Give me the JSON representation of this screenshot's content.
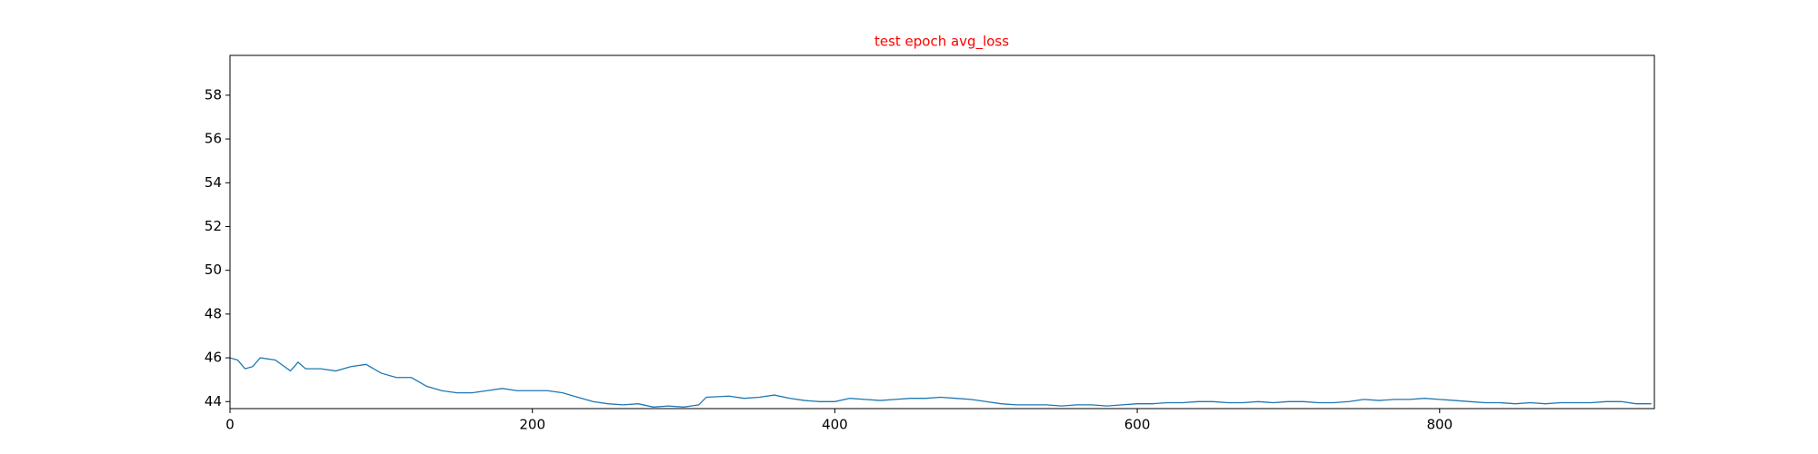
{
  "chart_data": {
    "type": "line",
    "title": "test epoch avg_loss",
    "title_color": "#ff0000",
    "x": [
      0,
      5,
      10,
      15,
      20,
      30,
      40,
      45,
      50,
      60,
      70,
      80,
      90,
      100,
      110,
      120,
      130,
      140,
      150,
      160,
      170,
      180,
      190,
      200,
      210,
      220,
      230,
      240,
      250,
      260,
      270,
      280,
      290,
      300,
      310,
      315,
      330,
      340,
      350,
      360,
      370,
      380,
      390,
      400,
      410,
      420,
      430,
      440,
      450,
      460,
      470,
      480,
      490,
      500,
      510,
      520,
      530,
      540,
      550,
      560,
      570,
      580,
      590,
      600,
      610,
      620,
      630,
      640,
      650,
      660,
      670,
      680,
      690,
      700,
      710,
      720,
      730,
      740,
      750,
      760,
      770,
      780,
      790,
      800,
      810,
      820,
      830,
      840,
      850,
      860,
      870,
      880,
      890,
      900,
      910,
      920,
      930,
      940
    ],
    "series": [
      {
        "color": "#1f77b4",
        "values": [
          46.0,
          45.9,
          45.5,
          45.6,
          46.0,
          45.9,
          45.4,
          45.8,
          45.5,
          45.5,
          45.4,
          45.6,
          45.7,
          45.3,
          45.1,
          45.1,
          44.7,
          44.5,
          44.4,
          44.4,
          44.5,
          44.6,
          44.5,
          44.5,
          44.5,
          44.4,
          44.2,
          44.0,
          43.9,
          43.85,
          43.9,
          43.75,
          43.8,
          43.75,
          43.85,
          44.2,
          44.25,
          44.15,
          44.2,
          44.3,
          44.15,
          44.05,
          44.0,
          44.0,
          44.15,
          44.1,
          44.05,
          44.1,
          44.15,
          44.15,
          44.2,
          44.15,
          44.1,
          44.0,
          43.9,
          43.85,
          43.85,
          43.85,
          43.8,
          43.85,
          43.85,
          43.8,
          43.85,
          43.9,
          43.9,
          43.95,
          43.95,
          44.0,
          44.0,
          43.95,
          43.95,
          44.0,
          43.95,
          44.0,
          44.0,
          43.95,
          43.95,
          44.0,
          44.1,
          44.05,
          44.1,
          44.1,
          44.15,
          44.1,
          44.05,
          44.0,
          43.95,
          43.95,
          43.9,
          43.95,
          43.9,
          43.95,
          43.95,
          43.95,
          44.0,
          44.0,
          43.9,
          43.9
        ]
      }
    ],
    "xlim": [
      0,
      942
    ],
    "ylim": [
      43.68,
      59.82
    ],
    "xticks": [
      0,
      200,
      400,
      600,
      800
    ],
    "yticks": [
      44,
      46,
      48,
      50,
      52,
      54,
      56,
      58
    ]
  }
}
